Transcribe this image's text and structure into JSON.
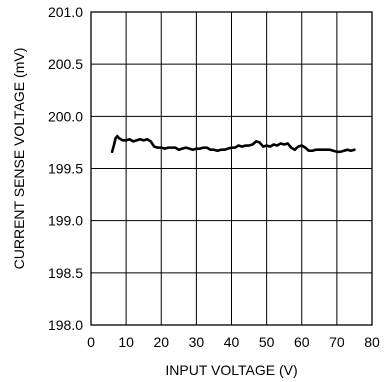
{
  "chart_data": {
    "type": "line",
    "title": "",
    "xlabel": "INPUT VOLTAGE (V)",
    "ylabel": "CURRENT SENSE VOLTAGE (mV)",
    "xlim": [
      0,
      80
    ],
    "ylim": [
      198.0,
      201.0
    ],
    "xticks": [
      0,
      10,
      20,
      30,
      40,
      50,
      60,
      70,
      80
    ],
    "yticks": [
      198.0,
      198.5,
      199.0,
      199.5,
      200.0,
      200.5,
      201.0
    ],
    "xtick_labels": [
      "0",
      "10",
      "20",
      "30",
      "40",
      "50",
      "60",
      "70",
      "80"
    ],
    "ytick_labels": [
      "198.0",
      "198.5",
      "199.0",
      "199.5",
      "200.0",
      "200.5",
      "201.0"
    ],
    "grid": true,
    "series": [
      {
        "x": [
          6,
          6.5,
          7,
          7.5,
          8,
          8.5,
          9,
          10,
          11,
          12,
          13,
          14,
          15,
          16,
          17,
          18,
          19,
          20,
          21,
          22,
          23,
          24,
          25,
          26,
          27,
          28,
          29,
          30,
          31,
          32,
          33,
          34,
          35,
          36,
          37,
          38,
          39,
          40,
          41,
          42,
          43,
          44,
          45,
          46,
          47,
          48,
          49,
          50,
          51,
          52,
          53,
          54,
          55,
          56,
          57,
          58,
          59,
          60,
          61,
          62,
          63,
          64,
          65,
          66,
          67,
          68,
          69,
          70,
          71,
          72,
          73,
          74,
          75
        ],
        "y": [
          199.66,
          199.72,
          199.79,
          199.81,
          199.79,
          199.78,
          199.77,
          199.77,
          199.78,
          199.76,
          199.77,
          199.78,
          199.77,
          199.78,
          199.76,
          199.71,
          199.7,
          199.7,
          199.69,
          199.7,
          199.7,
          199.7,
          199.68,
          199.69,
          199.7,
          199.69,
          199.68,
          199.69,
          199.69,
          199.7,
          199.7,
          199.68,
          199.68,
          199.67,
          199.68,
          199.68,
          199.69,
          199.7,
          199.7,
          199.72,
          199.71,
          199.72,
          199.72,
          199.73,
          199.76,
          199.75,
          199.71,
          199.72,
          199.71,
          199.73,
          199.72,
          199.74,
          199.73,
          199.74,
          199.7,
          199.68,
          199.71,
          199.72,
          199.7,
          199.67,
          199.67,
          199.68,
          199.68,
          199.68,
          199.68,
          199.68,
          199.67,
          199.66,
          199.66,
          199.67,
          199.68,
          199.67,
          199.68
        ]
      }
    ]
  }
}
